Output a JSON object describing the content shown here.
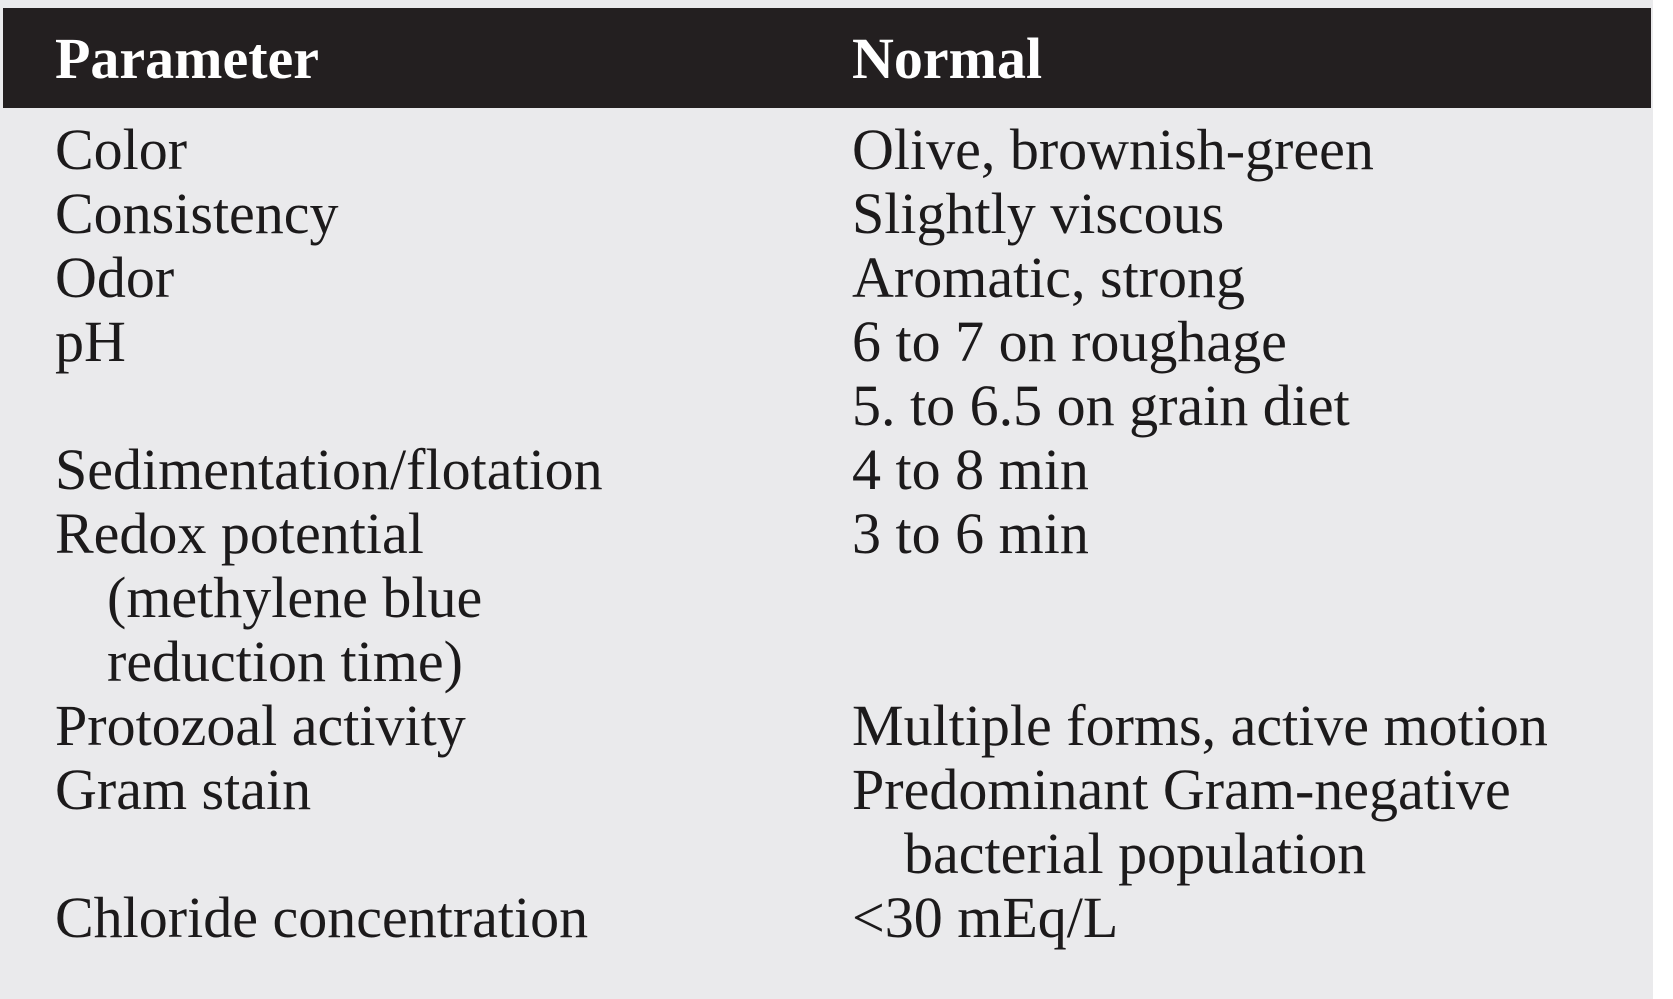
{
  "table": {
    "header": {
      "param": "Parameter",
      "normal": "Normal"
    },
    "rows": [
      {
        "param": [
          {
            "text": "Color",
            "indent": false
          }
        ],
        "normal": [
          {
            "text": "Olive, brownish-green",
            "indent": false
          }
        ]
      },
      {
        "param": [
          {
            "text": "Consistency",
            "indent": false
          }
        ],
        "normal": [
          {
            "text": "Slightly viscous",
            "indent": false
          }
        ]
      },
      {
        "param": [
          {
            "text": "Odor",
            "indent": false
          }
        ],
        "normal": [
          {
            "text": "Aromatic, strong",
            "indent": false
          }
        ]
      },
      {
        "param": [
          {
            "text": "pH",
            "indent": false
          }
        ],
        "normal": [
          {
            "text": "6 to 7 on roughage",
            "indent": false
          },
          {
            "text": "5. to 6.5 on grain diet",
            "indent": false
          }
        ]
      },
      {
        "param": [
          {
            "text": "Sedimentation/flotation",
            "indent": false
          }
        ],
        "normal": [
          {
            "text": "4 to 8 min",
            "indent": false
          }
        ]
      },
      {
        "param": [
          {
            "text": "Redox potential",
            "indent": false
          },
          {
            "text": "(methylene blue",
            "indent": true
          },
          {
            "text": "reduction time)",
            "indent": true
          }
        ],
        "normal": [
          {
            "text": "3 to 6 min",
            "indent": false
          }
        ]
      },
      {
        "param": [
          {
            "text": "Protozoal activity",
            "indent": false
          }
        ],
        "normal": [
          {
            "text": "Multiple forms, active motion",
            "indent": false
          }
        ]
      },
      {
        "param": [
          {
            "text": "Gram stain",
            "indent": false
          }
        ],
        "normal": [
          {
            "text": "Predominant Gram-negative",
            "indent": false
          },
          {
            "text": "bacterial population",
            "indent": true
          }
        ]
      },
      {
        "param": [
          {
            "text": "Chloride concentration",
            "indent": false
          }
        ],
        "normal": [
          {
            "text": "<30 mEq/L",
            "indent": false
          }
        ]
      }
    ]
  },
  "colors": {
    "header_bg": "#231f20",
    "header_text": "#ffffff",
    "panel_bg": "#eaeaec",
    "page_bg": "#ffffff",
    "text": "#1c1a1b"
  }
}
